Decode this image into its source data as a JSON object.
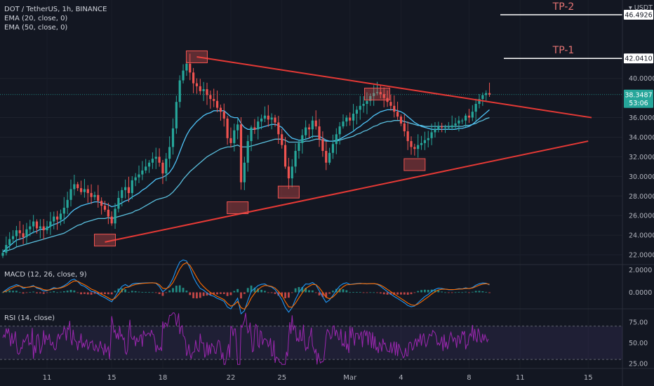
{
  "chart_data": {
    "type": "candlestick",
    "symbol_title": "DOT / TetherUS, 1h, BINANCE",
    "indicators": [
      "EMA (20, close, 0)",
      "EMA (50, close, 0)"
    ],
    "currency_label": "USDT",
    "price_axis_ticks": [
      "22.0000",
      "24.0000",
      "26.0000",
      "28.0000",
      "30.0000",
      "32.0000",
      "34.0000",
      "36.0000",
      "40.0000"
    ],
    "price_range": [
      21.0,
      48.0
    ],
    "last_price": {
      "value": "38.3487",
      "countdown": "53:06"
    },
    "targets": [
      {
        "label": "TP-1",
        "value": "42.0410",
        "price": 42.041
      },
      {
        "label": "TP-2",
        "value": "46.4926",
        "price": 46.4926
      }
    ],
    "x_axis_ticks": [
      {
        "label": "11",
        "idx": 13
      },
      {
        "label": "15",
        "idx": 32
      },
      {
        "label": "18",
        "idx": 47
      },
      {
        "label": "22",
        "idx": 67
      },
      {
        "label": "25",
        "idx": 82
      },
      {
        "label": "Mar",
        "idx": 102
      },
      {
        "label": "4",
        "idx": 117
      },
      {
        "label": "8",
        "idx": 137
      },
      {
        "label": "11",
        "idx": 152
      },
      {
        "label": "15",
        "idx": 172
      }
    ],
    "price_closes": [
      22.2,
      23.0,
      23.6,
      23.9,
      24.5,
      24.2,
      23.8,
      24.6,
      24.9,
      25.4,
      24.7,
      24.9,
      24.5,
      24.9,
      25.4,
      25.9,
      25.6,
      26.2,
      26.8,
      27.6,
      28.7,
      29.2,
      28.8,
      28.4,
      28.7,
      28.3,
      27.9,
      28.1,
      27.5,
      27.0,
      26.6,
      25.9,
      25.2,
      26.7,
      27.8,
      28.6,
      28.9,
      28.3,
      29.6,
      29.9,
      30.2,
      30.6,
      31.0,
      31.4,
      31.8,
      32.0,
      31.4,
      30.3,
      31.8,
      33.0,
      34.9,
      37.6,
      39.8,
      40.8,
      41.5,
      40.6,
      39.5,
      39.2,
      38.7,
      38.9,
      38.3,
      37.9,
      37.7,
      37.0,
      36.6,
      35.9,
      33.9,
      33.4,
      34.7,
      35.3,
      29.4,
      31.4,
      33.6,
      35.0,
      34.8,
      35.6,
      35.9,
      36.2,
      35.8,
      36.0,
      35.5,
      34.3,
      33.2,
      31.0,
      29.8,
      31.0,
      32.6,
      33.4,
      34.2,
      35.0,
      34.8,
      35.7,
      35.1,
      33.8,
      32.6,
      31.4,
      32.4,
      33.3,
      34.3,
      35.1,
      35.6,
      36.0,
      35.7,
      36.4,
      36.8,
      37.2,
      37.4,
      37.7,
      38.2,
      38.5,
      38.6,
      38.4,
      38.0,
      37.6,
      37.2,
      36.6,
      36.1,
      35.4,
      34.6,
      33.6,
      33.0,
      32.8,
      33.2,
      33.4,
      33.7,
      33.9,
      34.5,
      34.8,
      35.1,
      35.0,
      35.0,
      35.0,
      35.2,
      35.4,
      35.7,
      35.7,
      36.2,
      36.0,
      36.6,
      37.4,
      37.9,
      38.3,
      38.5,
      38.35
    ],
    "ema20": [
      22.3,
      22.6,
      22.9,
      23.2,
      23.5,
      23.6,
      23.7,
      23.9,
      24.1,
      24.3,
      24.4,
      24.6,
      24.6,
      24.7,
      24.9,
      25.1,
      25.2,
      25.4,
      25.6,
      25.9,
      26.3,
      26.6,
      26.8,
      27.0,
      27.1,
      27.2,
      27.3,
      27.4,
      27.4,
      27.3,
      27.2,
      27.1,
      26.9,
      27.0,
      27.1,
      27.3,
      27.5,
      27.6,
      27.9,
      28.1,
      28.3,
      28.6,
      28.8,
      29.1,
      29.4,
      29.7,
      29.8,
      29.9,
      30.1,
      30.4,
      30.9,
      31.6,
      32.5,
      33.4,
      34.2,
      34.8,
      35.2,
      35.6,
      35.9,
      36.2,
      36.4,
      36.5,
      36.7,
      36.7,
      36.7,
      36.7,
      36.4,
      36.1,
      36.0,
      36.0,
      35.4,
      35.0,
      34.8,
      34.8,
      34.8,
      34.9,
      35.0,
      35.1,
      35.2,
      35.3,
      35.3,
      35.2,
      35.0,
      34.6,
      34.2,
      33.9,
      33.8,
      33.7,
      33.7,
      33.8,
      33.9,
      34.1,
      34.1,
      34.1,
      33.9,
      33.7,
      33.6,
      33.6,
      33.7,
      33.8,
      34.0,
      34.2,
      34.4,
      34.6,
      34.9,
      35.1,
      35.4,
      35.6,
      35.9,
      36.2,
      36.4,
      36.6,
      36.7,
      36.8,
      36.8,
      36.8,
      36.7,
      36.6,
      36.4,
      36.1,
      35.8,
      35.5,
      35.3,
      35.1,
      35.0,
      34.9,
      34.8,
      34.8,
      34.8,
      34.8,
      34.8,
      34.8,
      34.8,
      34.8,
      34.9,
      34.9,
      35.0,
      35.1,
      35.3,
      35.6,
      35.9,
      36.2,
      36.5,
      36.8
    ],
    "ema50": [
      22.3,
      22.4,
      22.5,
      22.6,
      22.8,
      22.9,
      23.0,
      23.1,
      23.2,
      23.3,
      23.4,
      23.5,
      23.6,
      23.7,
      23.8,
      23.9,
      24.0,
      24.1,
      24.2,
      24.4,
      24.6,
      24.8,
      25.0,
      25.1,
      25.3,
      25.4,
      25.5,
      25.6,
      25.7,
      25.7,
      25.7,
      25.8,
      25.7,
      25.8,
      25.9,
      26.0,
      26.1,
      26.2,
      26.3,
      26.5,
      26.6,
      26.8,
      27.0,
      27.2,
      27.4,
      27.6,
      27.7,
      27.8,
      27.9,
      28.1,
      28.4,
      28.8,
      29.2,
      29.7,
      30.1,
      30.5,
      30.8,
      31.1,
      31.4,
      31.7,
      32.0,
      32.2,
      32.4,
      32.6,
      32.8,
      32.9,
      33.0,
      33.0,
      33.1,
      33.2,
      33.0,
      33.0,
      33.0,
      33.1,
      33.2,
      33.3,
      33.4,
      33.5,
      33.6,
      33.7,
      33.8,
      33.8,
      33.8,
      33.7,
      33.5,
      33.5,
      33.5,
      33.5,
      33.5,
      33.6,
      33.6,
      33.7,
      33.8,
      33.8,
      33.7,
      33.6,
      33.6,
      33.6,
      33.6,
      33.7,
      33.8,
      33.9,
      34.0,
      34.1,
      34.3,
      34.4,
      34.6,
      34.7,
      34.9,
      35.1,
      35.2,
      35.4,
      35.5,
      35.6,
      35.6,
      35.7,
      35.7,
      35.7,
      35.6,
      35.5,
      35.4,
      35.3,
      35.2,
      35.2,
      35.1,
      35.1,
      35.1,
      35.1,
      35.1,
      35.1,
      35.1,
      35.1,
      35.1,
      35.1,
      35.1,
      35.1,
      35.2,
      35.2,
      35.3,
      35.4,
      35.6,
      35.7,
      35.9,
      36.0
    ],
    "trendlines": [
      {
        "name": "upper",
        "from": {
          "idx": 57,
          "price": 42.2
        },
        "to": {
          "idx": 173,
          "price": 36.0
        }
      },
      {
        "name": "lower",
        "from": {
          "idx": 30,
          "price": 23.3
        },
        "to": {
          "idx": 172,
          "price": 33.6
        }
      }
    ],
    "highlight_boxes": [
      {
        "idx": 30,
        "price": 23.5
      },
      {
        "idx": 57,
        "price": 42.2
      },
      {
        "idx": 69,
        "price": 26.8
      },
      {
        "idx": 84,
        "price": 28.4
      },
      {
        "idx": 110,
        "price": 38.4
      },
      {
        "idx": 121,
        "price": 31.2
      }
    ],
    "macd": {
      "title": "MACD (12, 26, close, 9)",
      "ticks": [
        "2.0000",
        "0.0000"
      ],
      "range": [
        -1.4,
        2.4
      ]
    },
    "rsi": {
      "title": "RSI (14, close)",
      "ticks": [
        "75.00",
        "50.00",
        "25.00"
      ],
      "range": [
        20,
        90
      ],
      "band": [
        30,
        70
      ]
    }
  }
}
